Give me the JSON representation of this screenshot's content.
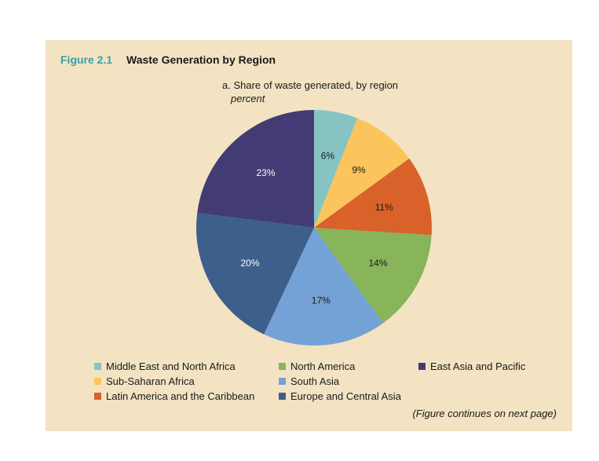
{
  "figure": {
    "number": "Figure 2.1",
    "title": "Waste Generation by Region",
    "subtitle": "a. Share of waste generated, by region",
    "unit": "percent",
    "continues": "(Figure continues on next page)"
  },
  "chart_data": {
    "type": "pie",
    "title": "a. Share of waste generated, by region",
    "subtitle": "percent",
    "legend_position": "bottom",
    "slices": [
      {
        "label": "Middle East and North Africa",
        "value": 6,
        "display": "6%",
        "color": "#86c4c4"
      },
      {
        "label": "Sub-Saharan Africa",
        "value": 9,
        "display": "9%",
        "color": "#fcc45c"
      },
      {
        "label": "Latin America and the Caribbean",
        "value": 11,
        "display": "11%",
        "color": "#d9612a"
      },
      {
        "label": "North America",
        "value": 14,
        "display": "14%",
        "color": "#88b45a"
      },
      {
        "label": "South Asia",
        "value": 17,
        "display": "17%",
        "color": "#74a2d6"
      },
      {
        "label": "Europe and Central Asia",
        "value": 20,
        "display": "20%",
        "color": "#3d5f8b"
      },
      {
        "label": "East Asia and Pacific",
        "value": 23,
        "display": "23%",
        "color": "#433c74"
      }
    ]
  },
  "legend": [
    {
      "label": "Middle East and North Africa",
      "color": "#86c4c4"
    },
    {
      "label": "Sub-Saharan Africa",
      "color": "#fcc45c"
    },
    {
      "label": "Latin America and the Caribbean",
      "color": "#d9612a"
    },
    {
      "label": "North America",
      "color": "#88b45a"
    },
    {
      "label": "South Asia",
      "color": "#74a2d6"
    },
    {
      "label": "Europe and Central Asia",
      "color": "#3d5f8b"
    },
    {
      "label": "East Asia and Pacific",
      "color": "#433c74"
    }
  ]
}
